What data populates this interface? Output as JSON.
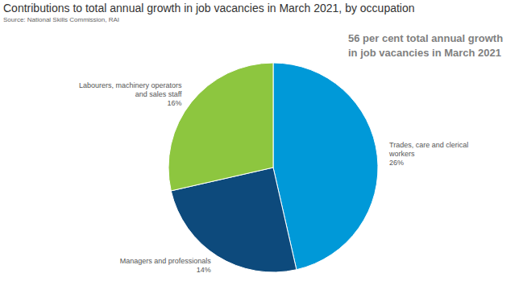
{
  "chart_data": {
    "type": "pie",
    "title": "Contributions to total annual growth in job vacancies in March 2021, by occupation",
    "subtitle": "Source: National Skills Commission, RAI",
    "annotation": "56 per cent total annual growth in job vacancies in March 2021",
    "categories": [
      "Trades, care and clerical workers",
      "Managers and professionals",
      "Labourers, machinery operators and sales staff"
    ],
    "values": [
      26,
      14,
      16
    ],
    "value_labels": [
      "26%",
      "14%",
      "16%"
    ],
    "colors": [
      "#0099d8",
      "#0d4a7c",
      "#8dc63f"
    ],
    "data_labels": true
  }
}
